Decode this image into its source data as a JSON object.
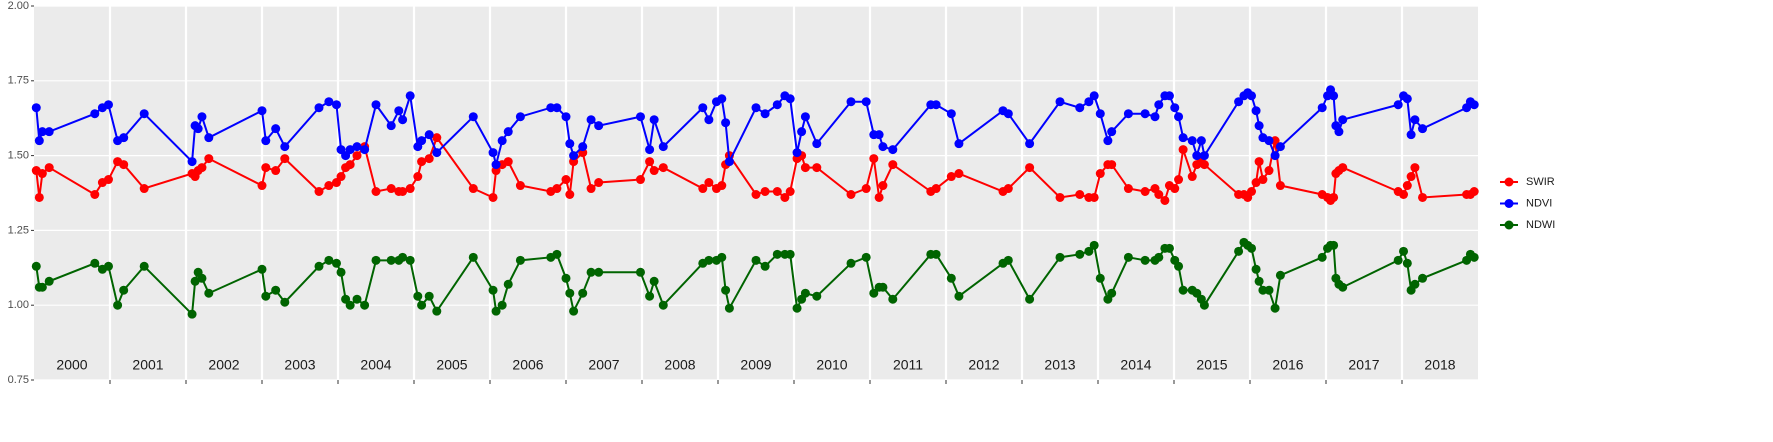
{
  "chart_data": {
    "type": "line",
    "x": [
      2000.03,
      2000.07,
      2000.11,
      2000.2,
      2000.8,
      2000.9,
      2000.98,
      2001.1,
      2001.18,
      2001.45,
      2002.08,
      2002.12,
      2002.16,
      2002.21,
      2002.3,
      2003.0,
      2003.05,
      2003.18,
      2003.3,
      2003.75,
      2003.88,
      2003.98,
      2004.04,
      2004.1,
      2004.16,
      2004.25,
      2004.35,
      2004.5,
      2004.7,
      2004.8,
      2004.85,
      2004.95,
      2005.05,
      2005.1,
      2005.2,
      2005.3,
      2005.78,
      2006.04,
      2006.08,
      2006.16,
      2006.24,
      2006.4,
      2006.8,
      2006.88,
      2007.0,
      2007.05,
      2007.1,
      2007.22,
      2007.33,
      2007.43,
      2007.98,
      2008.1,
      2008.16,
      2008.28,
      2008.8,
      2008.88,
      2008.98,
      2009.05,
      2009.1,
      2009.15,
      2009.5,
      2009.62,
      2009.78,
      2009.88,
      2009.95,
      2010.04,
      2010.1,
      2010.15,
      2010.3,
      2010.75,
      2010.95,
      2011.05,
      2011.12,
      2011.17,
      2011.3,
      2011.8,
      2011.87,
      2012.07,
      2012.17,
      2012.75,
      2012.82,
      2013.1,
      2013.5,
      2013.76,
      2013.88,
      2013.95,
      2014.03,
      2014.13,
      2014.18,
      2014.4,
      2014.62,
      2014.75,
      2014.8,
      2014.88,
      2014.94,
      2015.01,
      2015.06,
      2015.12,
      2015.24,
      2015.3,
      2015.36,
      2015.4,
      2015.85,
      2015.92,
      2015.97,
      2016.02,
      2016.08,
      2016.12,
      2016.17,
      2016.25,
      2016.33,
      2016.4,
      2016.95,
      2017.02,
      2017.06,
      2017.1,
      2017.13,
      2017.17,
      2017.22,
      2017.95,
      2018.02,
      2018.07,
      2018.12,
      2018.17,
      2018.27,
      2018.85,
      2018.9,
      2018.95
    ],
    "series": [
      {
        "name": "SWIR",
        "color": "#ff0000",
        "values": [
          1.45,
          1.36,
          1.44,
          1.46,
          1.37,
          1.41,
          1.42,
          1.48,
          1.47,
          1.39,
          1.44,
          1.43,
          1.45,
          1.46,
          1.49,
          1.4,
          1.46,
          1.45,
          1.49,
          1.38,
          1.4,
          1.41,
          1.43,
          1.46,
          1.47,
          1.5,
          1.53,
          1.38,
          1.39,
          1.38,
          1.38,
          1.39,
          1.43,
          1.48,
          1.49,
          1.56,
          1.39,
          1.36,
          1.45,
          1.47,
          1.48,
          1.4,
          1.38,
          1.39,
          1.42,
          1.37,
          1.48,
          1.51,
          1.39,
          1.41,
          1.42,
          1.48,
          1.45,
          1.46,
          1.39,
          1.41,
          1.39,
          1.4,
          1.47,
          1.5,
          1.37,
          1.38,
          1.38,
          1.36,
          1.38,
          1.49,
          1.5,
          1.46,
          1.46,
          1.37,
          1.39,
          1.49,
          1.36,
          1.4,
          1.47,
          1.38,
          1.39,
          1.43,
          1.44,
          1.38,
          1.39,
          1.46,
          1.36,
          1.37,
          1.36,
          1.36,
          1.44,
          1.47,
          1.47,
          1.39,
          1.38,
          1.39,
          1.37,
          1.35,
          1.4,
          1.39,
          1.42,
          1.52,
          1.43,
          1.47,
          1.48,
          1.47,
          1.37,
          1.37,
          1.36,
          1.38,
          1.41,
          1.48,
          1.42,
          1.45,
          1.55,
          1.4,
          1.37,
          1.36,
          1.35,
          1.36,
          1.44,
          1.45,
          1.46,
          1.38,
          1.37,
          1.4,
          1.43,
          1.46,
          1.36,
          1.37,
          1.37,
          1.38
        ]
      },
      {
        "name": "NDVI",
        "color": "#0000ff",
        "values": [
          1.66,
          1.55,
          1.58,
          1.58,
          1.64,
          1.66,
          1.67,
          1.55,
          1.56,
          1.64,
          1.48,
          1.6,
          1.59,
          1.63,
          1.56,
          1.65,
          1.55,
          1.59,
          1.53,
          1.66,
          1.68,
          1.67,
          1.52,
          1.5,
          1.52,
          1.53,
          1.52,
          1.67,
          1.6,
          1.65,
          1.62,
          1.7,
          1.53,
          1.55,
          1.57,
          1.51,
          1.63,
          1.51,
          1.47,
          1.55,
          1.58,
          1.63,
          1.66,
          1.66,
          1.63,
          1.54,
          1.5,
          1.53,
          1.62,
          1.6,
          1.63,
          1.52,
          1.62,
          1.53,
          1.66,
          1.62,
          1.68,
          1.69,
          1.61,
          1.48,
          1.66,
          1.64,
          1.67,
          1.7,
          1.69,
          1.51,
          1.58,
          1.63,
          1.54,
          1.68,
          1.68,
          1.57,
          1.57,
          1.53,
          1.52,
          1.67,
          1.67,
          1.64,
          1.54,
          1.65,
          1.64,
          1.54,
          1.68,
          1.66,
          1.68,
          1.7,
          1.64,
          1.55,
          1.58,
          1.64,
          1.64,
          1.63,
          1.67,
          1.7,
          1.7,
          1.66,
          1.63,
          1.56,
          1.55,
          1.5,
          1.55,
          1.5,
          1.68,
          1.7,
          1.71,
          1.7,
          1.65,
          1.6,
          1.56,
          1.55,
          1.5,
          1.53,
          1.66,
          1.7,
          1.72,
          1.7,
          1.6,
          1.58,
          1.62,
          1.67,
          1.7,
          1.69,
          1.57,
          1.62,
          1.59,
          1.66,
          1.68,
          1.67
        ]
      },
      {
        "name": "NDWI",
        "color": "#006400",
        "values": [
          1.13,
          1.06,
          1.06,
          1.08,
          1.14,
          1.12,
          1.13,
          1.0,
          1.05,
          1.13,
          0.97,
          1.08,
          1.11,
          1.09,
          1.04,
          1.12,
          1.03,
          1.05,
          1.01,
          1.13,
          1.15,
          1.14,
          1.11,
          1.02,
          1.0,
          1.02,
          1.0,
          1.15,
          1.15,
          1.15,
          1.16,
          1.15,
          1.03,
          1.0,
          1.03,
          0.98,
          1.16,
          1.05,
          0.98,
          1.0,
          1.07,
          1.15,
          1.16,
          1.17,
          1.09,
          1.04,
          0.98,
          1.04,
          1.11,
          1.11,
          1.11,
          1.03,
          1.08,
          1.0,
          1.14,
          1.15,
          1.15,
          1.16,
          1.05,
          0.99,
          1.15,
          1.13,
          1.17,
          1.17,
          1.17,
          0.99,
          1.02,
          1.04,
          1.03,
          1.14,
          1.16,
          1.04,
          1.06,
          1.06,
          1.02,
          1.17,
          1.17,
          1.09,
          1.03,
          1.14,
          1.15,
          1.02,
          1.16,
          1.17,
          1.18,
          1.2,
          1.09,
          1.02,
          1.04,
          1.16,
          1.15,
          1.15,
          1.16,
          1.19,
          1.19,
          1.15,
          1.13,
          1.05,
          1.05,
          1.04,
          1.02,
          1.0,
          1.18,
          1.21,
          1.2,
          1.19,
          1.12,
          1.08,
          1.05,
          1.05,
          0.99,
          1.1,
          1.16,
          1.19,
          1.2,
          1.2,
          1.09,
          1.07,
          1.06,
          1.15,
          1.18,
          1.14,
          1.05,
          1.07,
          1.09,
          1.15,
          1.17,
          1.16
        ]
      }
    ],
    "xlim": [
      2000,
      2019
    ],
    "xgrid": [
      2001,
      2002,
      2003,
      2004,
      2005,
      2006,
      2007,
      2008,
      2009,
      2010,
      2011,
      2012,
      2013,
      2014,
      2015,
      2016,
      2017,
      2018
    ],
    "year_labels": [
      {
        "value": 2000.5,
        "label": "2000"
      },
      {
        "value": 2001.5,
        "label": "2001"
      },
      {
        "value": 2002.5,
        "label": "2002"
      },
      {
        "value": 2003.5,
        "label": "2003"
      },
      {
        "value": 2004.5,
        "label": "2004"
      },
      {
        "value": 2005.5,
        "label": "2005"
      },
      {
        "value": 2006.5,
        "label": "2006"
      },
      {
        "value": 2007.5,
        "label": "2007"
      },
      {
        "value": 2008.5,
        "label": "2008"
      },
      {
        "value": 2009.5,
        "label": "2009"
      },
      {
        "value": 2010.5,
        "label": "2010"
      },
      {
        "value": 2011.5,
        "label": "2011"
      },
      {
        "value": 2012.5,
        "label": "2012"
      },
      {
        "value": 2013.5,
        "label": "2013"
      },
      {
        "value": 2014.5,
        "label": "2014"
      },
      {
        "value": 2015.5,
        "label": "2015"
      },
      {
        "value": 2016.5,
        "label": "2016"
      },
      {
        "value": 2017.5,
        "label": "2017"
      },
      {
        "value": 2018.5,
        "label": "2018"
      }
    ],
    "ylim": [
      0.75,
      2.0
    ],
    "yticks": [
      0.75,
      {
        "value": 1.0,
        "label": "1.00"
      },
      1.25,
      {
        "value": 1.5,
        "label": "1.50"
      },
      1.75,
      {
        "value": 2.0,
        "label": "2.00"
      }
    ],
    "grid": true,
    "legend": "right"
  }
}
